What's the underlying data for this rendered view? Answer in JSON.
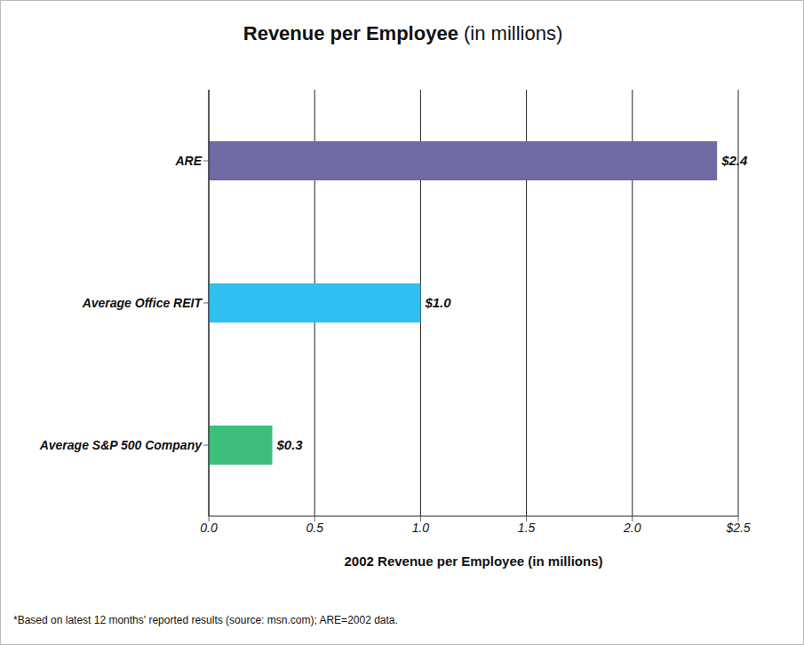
{
  "chart_data": {
    "type": "bar",
    "title": "Revenue per Employee (in millions)",
    "orientation": "horizontal",
    "categories": [
      "ARE",
      "Average Office REIT",
      "Average S&P 500 Company"
    ],
    "values": [
      2.4,
      1.0,
      0.3
    ],
    "value_labels": [
      "$2.4",
      "$1.0",
      "$0.3"
    ],
    "colors": [
      "#6e6aa3",
      "#2fc0ef",
      "#3cbf7c"
    ],
    "x_label": "2002 Revenue per Employee (in millions)",
    "xlim": [
      0,
      2.5
    ],
    "xticks": [
      {
        "value": 0,
        "label": "0.0"
      },
      0.5,
      {
        "value": 1,
        "label": "1.0"
      },
      1.5,
      {
        "value": 2,
        "label": "2.0"
      },
      {
        "value": 2.5,
        "label": "$2.5"
      }
    ],
    "grid": true,
    "data_labels": true,
    "footnote": "*Based on latest 12 months' reported results (source: msn.com); ARE=2002 data."
  }
}
